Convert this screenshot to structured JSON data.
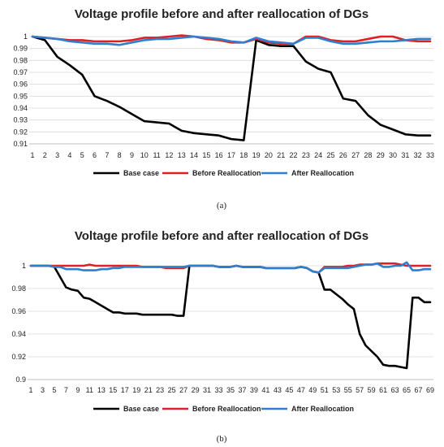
{
  "chart_data": [
    {
      "type": "line",
      "panel_label": "(a)",
      "title": "Voltage profile before and after reallocation of DGs",
      "xlabel": "",
      "ylabel": "",
      "ylim": [
        0.91,
        1.0
      ],
      "yticks": [
        "0.91",
        "0.92",
        "0.93",
        "0.94",
        "0.95",
        "0.96",
        "0.97",
        "0.98",
        "0.99",
        "1"
      ],
      "x": [
        1,
        2,
        3,
        4,
        5,
        6,
        7,
        8,
        9,
        10,
        11,
        12,
        13,
        14,
        15,
        16,
        17,
        18,
        19,
        20,
        21,
        22,
        23,
        24,
        25,
        26,
        27,
        28,
        29,
        30,
        31,
        32,
        33
      ],
      "xticks": [
        "1",
        "2",
        "3",
        "4",
        "5",
        "6",
        "7",
        "8",
        "9",
        "10",
        "11",
        "12",
        "13",
        "14",
        "15",
        "16",
        "17",
        "18",
        "19",
        "20",
        "21",
        "22",
        "23",
        "24",
        "25",
        "26",
        "27",
        "28",
        "29",
        "30",
        "31",
        "32",
        "33"
      ],
      "grid": true,
      "legend_position": "bottom",
      "series": [
        {
          "name": "Base case",
          "color": "#000000",
          "values": [
            1.0,
            0.997,
            0.983,
            0.976,
            0.968,
            0.95,
            0.946,
            0.941,
            0.935,
            0.929,
            0.928,
            0.927,
            0.921,
            0.919,
            0.918,
            0.917,
            0.914,
            0.913,
            0.997,
            0.993,
            0.992,
            0.992,
            0.979,
            0.973,
            0.97,
            0.948,
            0.946,
            0.934,
            0.926,
            0.922,
            0.918,
            0.917,
            0.917
          ]
        },
        {
          "name": "Before Reallocation",
          "color": "#e02020",
          "values": [
            1.0,
            0.999,
            0.998,
            0.997,
            0.997,
            0.996,
            0.996,
            0.996,
            0.997,
            0.999,
            0.999,
            1.0,
            1.001,
            1.0,
            0.998,
            0.997,
            0.995,
            0.995,
            0.998,
            0.995,
            0.994,
            0.994,
            1.0,
            1.0,
            0.997,
            0.996,
            0.996,
            0.998,
            1.0,
            1.0,
            0.997,
            0.996,
            0.996
          ]
        },
        {
          "name": "After Reallocation",
          "color": "#2f7fd0",
          "values": [
            1.0,
            0.999,
            0.998,
            0.996,
            0.995,
            0.994,
            0.994,
            0.993,
            0.995,
            0.997,
            0.998,
            0.998,
            0.999,
            1.0,
            0.999,
            0.998,
            0.996,
            0.995,
            0.999,
            0.996,
            0.995,
            0.994,
            0.999,
            0.999,
            0.996,
            0.994,
            0.994,
            0.995,
            0.996,
            0.996,
            0.997,
            0.998,
            0.998
          ]
        }
      ]
    },
    {
      "type": "line",
      "panel_label": "(b)",
      "title": "Voltage profile before and after reallocation of DGs",
      "xlabel": "",
      "ylabel": "",
      "ylim": [
        0.9,
        1.0
      ],
      "yticks": [
        "0.9",
        "0.92",
        "0.94",
        "0.96",
        "0.98",
        "1"
      ],
      "x": [
        1,
        2,
        3,
        4,
        5,
        6,
        7,
        8,
        9,
        10,
        11,
        12,
        13,
        14,
        15,
        16,
        17,
        18,
        19,
        20,
        21,
        22,
        23,
        24,
        25,
        26,
        27,
        28,
        29,
        30,
        31,
        32,
        33,
        34,
        35,
        36,
        37,
        38,
        39,
        40,
        41,
        42,
        43,
        44,
        45,
        46,
        47,
        48,
        49,
        50,
        51,
        52,
        53,
        54,
        55,
        56,
        57,
        58,
        59,
        60,
        61,
        62,
        63,
        64,
        65,
        66,
        67,
        68,
        69
      ],
      "xticks": [
        "1",
        "3",
        "5",
        "7",
        "9",
        "11",
        "13",
        "15",
        "17",
        "19",
        "21",
        "23",
        "25",
        "27",
        "29",
        "31",
        "33",
        "35",
        "37",
        "39",
        "41",
        "43",
        "45",
        "47",
        "49",
        "51",
        "53",
        "55",
        "57",
        "59",
        "61",
        "63",
        "65",
        "67",
        "69"
      ],
      "grid": true,
      "legend_position": "bottom",
      "series": [
        {
          "name": "Base case",
          "color": "#000000",
          "values": [
            1.0,
            1.0,
            1.0,
            1.0,
            0.999,
            0.99,
            0.981,
            0.979,
            0.978,
            0.972,
            0.971,
            0.968,
            0.965,
            0.962,
            0.959,
            0.959,
            0.958,
            0.958,
            0.958,
            0.957,
            0.957,
            0.957,
            0.957,
            0.957,
            0.957,
            0.956,
            0.956,
            1.0,
            1.0,
            1.0,
            1.0,
            1.0,
            0.999,
            0.999,
            0.999,
            1.0,
            0.999,
            0.999,
            0.999,
            0.999,
            0.998,
            0.998,
            0.998,
            0.998,
            0.998,
            0.998,
            0.999,
            0.998,
            0.995,
            0.994,
            0.979,
            0.979,
            0.975,
            0.971,
            0.966,
            0.962,
            0.94,
            0.93,
            0.925,
            0.92,
            0.913,
            0.912,
            0.912,
            0.911,
            0.91,
            0.972,
            0.972,
            0.968,
            0.968
          ]
        },
        {
          "name": "Before Reallocation",
          "color": "#e02020",
          "values": [
            1.0,
            1.0,
            1.0,
            1.0,
            1.0,
            1.0,
            1.0,
            1.0,
            1.0,
            1.0,
            1.001,
            1.0,
            1.0,
            1.0,
            1.0,
            1.0,
            1.0,
            1.0,
            1.0,
            0.999,
            0.999,
            0.999,
            0.999,
            0.998,
            0.998,
            0.998,
            0.998,
            1.0,
            1.0,
            1.0,
            1.0,
            1.0,
            0.999,
            0.999,
            0.999,
            1.0,
            0.999,
            0.999,
            0.999,
            0.999,
            0.998,
            0.998,
            0.998,
            0.998,
            0.998,
            0.998,
            0.999,
            0.998,
            0.995,
            0.994,
            0.999,
            0.999,
            0.999,
            0.999,
            1.0,
            1.0,
            1.001,
            1.001,
            1.001,
            1.002,
            1.002,
            1.002,
            1.002,
            1.001,
            1.0,
            1.0,
            1.0,
            1.0,
            1.0
          ]
        },
        {
          "name": "After Reallocation",
          "color": "#2f7fd0",
          "values": [
            1.0,
            1.0,
            1.0,
            1.0,
            0.999,
            0.999,
            0.997,
            0.997,
            0.997,
            0.996,
            0.996,
            0.996,
            0.997,
            0.997,
            0.998,
            0.998,
            0.999,
            0.999,
            0.999,
            0.999,
            0.999,
            0.999,
            0.999,
            0.999,
            0.999,
            0.999,
            0.999,
            1.0,
            1.0,
            1.0,
            1.0,
            1.0,
            0.999,
            0.999,
            0.999,
            1.0,
            0.999,
            0.999,
            0.999,
            0.999,
            0.998,
            0.998,
            0.998,
            0.998,
            0.998,
            0.998,
            0.999,
            0.998,
            0.995,
            0.994,
            0.998,
            0.998,
            0.998,
            0.998,
            0.998,
            0.999,
            1.0,
            1.001,
            1.001,
            1.002,
            0.999,
            0.999,
            1.0,
            1.0,
            1.003,
            0.996,
            0.996,
            0.997,
            0.997
          ]
        }
      ]
    }
  ]
}
